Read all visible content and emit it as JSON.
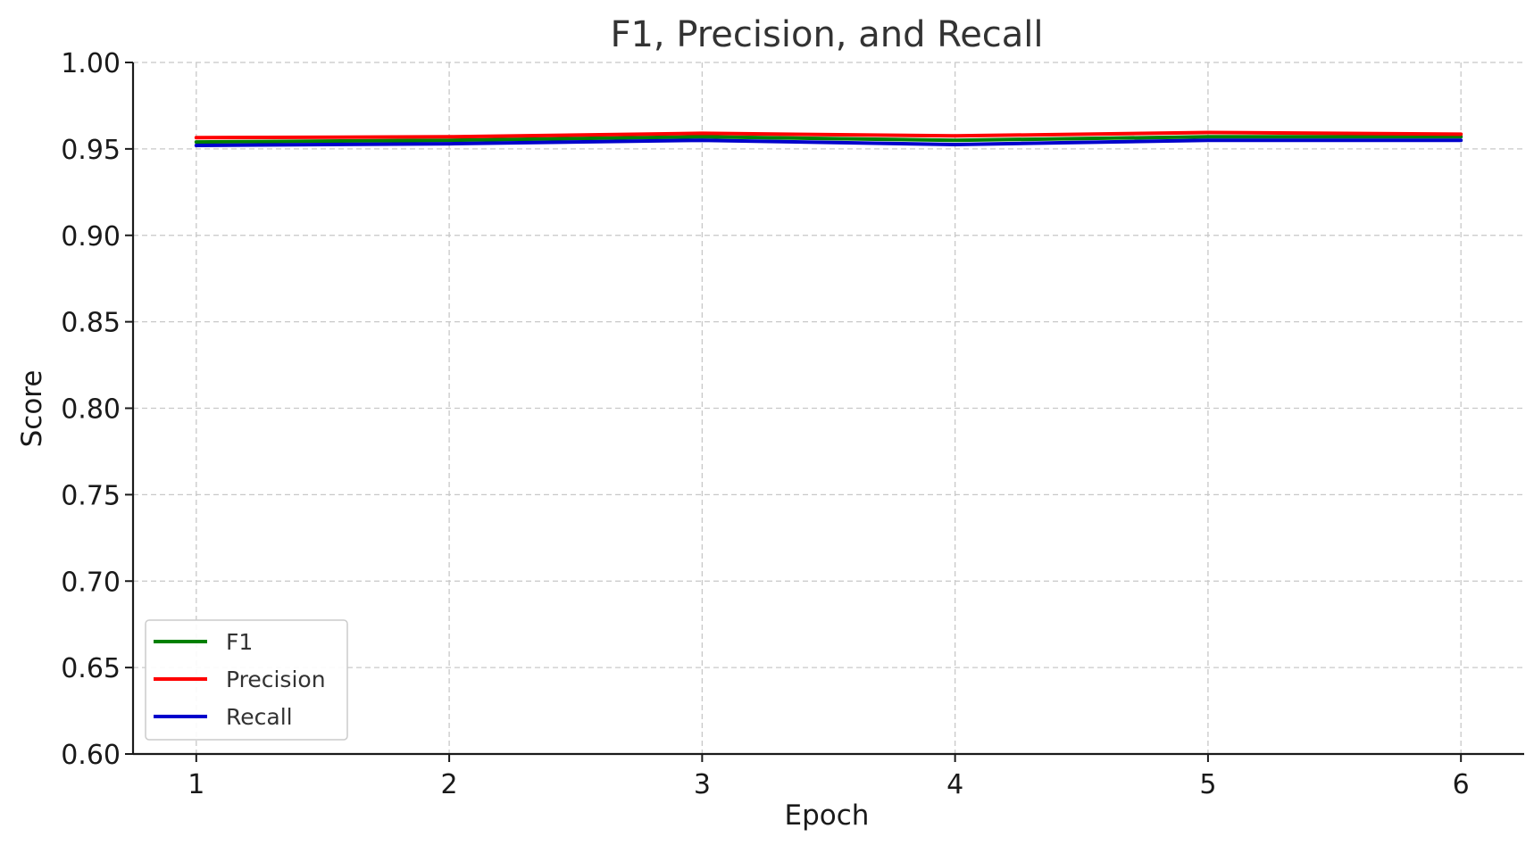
{
  "chart_data": {
    "type": "line",
    "title": "F1, Precision, and Recall",
    "xlabel": "Epoch",
    "ylabel": "Score",
    "x": [
      1,
      2,
      3,
      4,
      5,
      6
    ],
    "xlim": [
      0.75,
      6.25
    ],
    "ylim": [
      0.6,
      1.0
    ],
    "yticks": [
      0.6,
      0.65,
      0.7,
      0.75,
      0.8,
      0.85,
      0.9,
      0.95,
      1.0
    ],
    "ytick_labels": [
      "0.60",
      "0.65",
      "0.70",
      "0.75",
      "0.80",
      "0.85",
      "0.90",
      "0.95",
      "1.00"
    ],
    "xtick_labels": [
      "1",
      "2",
      "3",
      "4",
      "5",
      "6"
    ],
    "grid": true,
    "legend_position": "lower-left",
    "series": [
      {
        "name": "F1",
        "color": "#008000",
        "values": [
          0.954,
          0.955,
          0.957,
          0.955,
          0.957,
          0.957
        ]
      },
      {
        "name": "Precision",
        "color": "#ff0000",
        "values": [
          0.9565,
          0.957,
          0.959,
          0.9575,
          0.9595,
          0.9585
        ]
      },
      {
        "name": "Recall",
        "color": "#0000cc",
        "values": [
          0.952,
          0.953,
          0.955,
          0.9525,
          0.955,
          0.955
        ]
      }
    ]
  }
}
